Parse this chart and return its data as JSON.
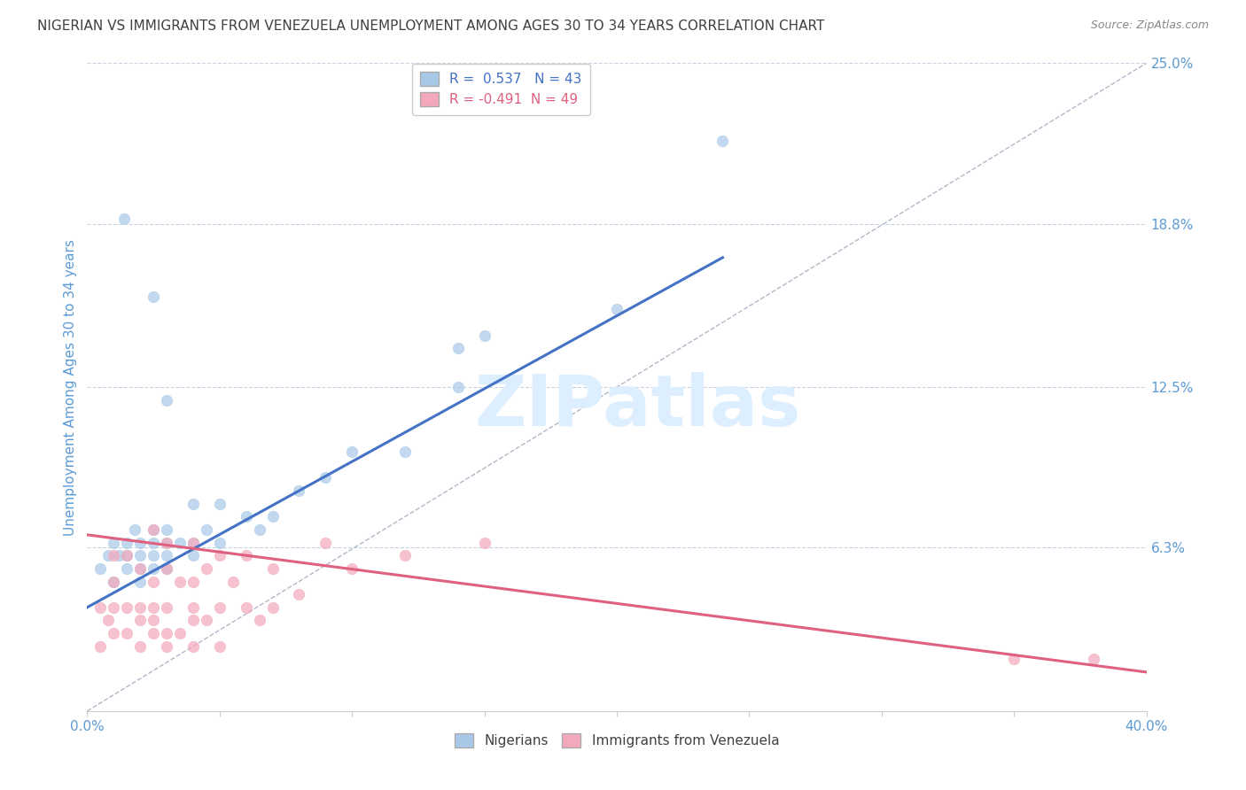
{
  "title": "NIGERIAN VS IMMIGRANTS FROM VENEZUELA UNEMPLOYMENT AMONG AGES 30 TO 34 YEARS CORRELATION CHART",
  "source": "Source: ZipAtlas.com",
  "ylabel": "Unemployment Among Ages 30 to 34 years",
  "xlim": [
    0,
    0.4
  ],
  "ylim": [
    0,
    0.25
  ],
  "xticks": [
    0.0,
    0.05,
    0.1,
    0.15,
    0.2,
    0.25,
    0.3,
    0.35,
    0.4
  ],
  "xticklabels": [
    "0.0%",
    "",
    "",
    "",
    "",
    "",
    "",
    "",
    "40.0%"
  ],
  "right_yticklabels": [
    "6.3%",
    "12.5%",
    "18.8%",
    "25.0%"
  ],
  "right_ytick_values": [
    0.063,
    0.125,
    0.188,
    0.25
  ],
  "blue_R": 0.537,
  "blue_N": 43,
  "pink_R": -0.491,
  "pink_N": 49,
  "blue_color": "#a8c8e8",
  "pink_color": "#f4a8bc",
  "blue_line_color": "#4472c4",
  "pink_line_color": "#e06080",
  "ref_line_color": "#b0b8c8",
  "grid_color": "#c8d4e4",
  "title_color": "#404040",
  "axis_label_color": "#5b9bd5",
  "watermark_color": "#ddeeff",
  "blue_scatter_x": [
    0.005,
    0.008,
    0.01,
    0.01,
    0.012,
    0.014,
    0.015,
    0.015,
    0.015,
    0.018,
    0.02,
    0.02,
    0.02,
    0.02,
    0.025,
    0.025,
    0.025,
    0.025,
    0.025,
    0.03,
    0.03,
    0.03,
    0.03,
    0.03,
    0.035,
    0.04,
    0.04,
    0.04,
    0.045,
    0.05,
    0.05,
    0.06,
    0.065,
    0.07,
    0.08,
    0.09,
    0.1,
    0.12,
    0.14,
    0.14,
    0.15,
    0.2,
    0.24
  ],
  "blue_scatter_y": [
    0.055,
    0.06,
    0.05,
    0.065,
    0.06,
    0.19,
    0.055,
    0.06,
    0.065,
    0.07,
    0.05,
    0.055,
    0.06,
    0.065,
    0.055,
    0.06,
    0.065,
    0.07,
    0.16,
    0.055,
    0.06,
    0.065,
    0.07,
    0.12,
    0.065,
    0.06,
    0.065,
    0.08,
    0.07,
    0.065,
    0.08,
    0.075,
    0.07,
    0.075,
    0.085,
    0.09,
    0.1,
    0.1,
    0.125,
    0.14,
    0.145,
    0.155,
    0.22
  ],
  "pink_scatter_x": [
    0.005,
    0.005,
    0.008,
    0.01,
    0.01,
    0.01,
    0.01,
    0.015,
    0.015,
    0.015,
    0.02,
    0.02,
    0.02,
    0.02,
    0.025,
    0.025,
    0.025,
    0.025,
    0.025,
    0.03,
    0.03,
    0.03,
    0.03,
    0.03,
    0.035,
    0.035,
    0.04,
    0.04,
    0.04,
    0.04,
    0.04,
    0.045,
    0.045,
    0.05,
    0.05,
    0.05,
    0.055,
    0.06,
    0.06,
    0.065,
    0.07,
    0.07,
    0.08,
    0.09,
    0.1,
    0.12,
    0.15,
    0.35,
    0.38
  ],
  "pink_scatter_y": [
    0.04,
    0.025,
    0.035,
    0.03,
    0.04,
    0.05,
    0.06,
    0.03,
    0.04,
    0.06,
    0.025,
    0.035,
    0.04,
    0.055,
    0.03,
    0.035,
    0.04,
    0.05,
    0.07,
    0.025,
    0.03,
    0.04,
    0.055,
    0.065,
    0.03,
    0.05,
    0.025,
    0.035,
    0.04,
    0.05,
    0.065,
    0.035,
    0.055,
    0.025,
    0.04,
    0.06,
    0.05,
    0.04,
    0.06,
    0.035,
    0.04,
    0.055,
    0.045,
    0.065,
    0.055,
    0.06,
    0.065,
    0.02,
    0.02
  ],
  "blue_line_x": [
    0.0,
    0.24
  ],
  "blue_line_y": [
    0.04,
    0.175
  ],
  "pink_line_x": [
    0.0,
    0.4
  ],
  "pink_line_y": [
    0.068,
    0.015
  ],
  "ref_line_x": [
    0.0,
    0.4
  ],
  "ref_line_y": [
    0.0,
    0.25
  ]
}
